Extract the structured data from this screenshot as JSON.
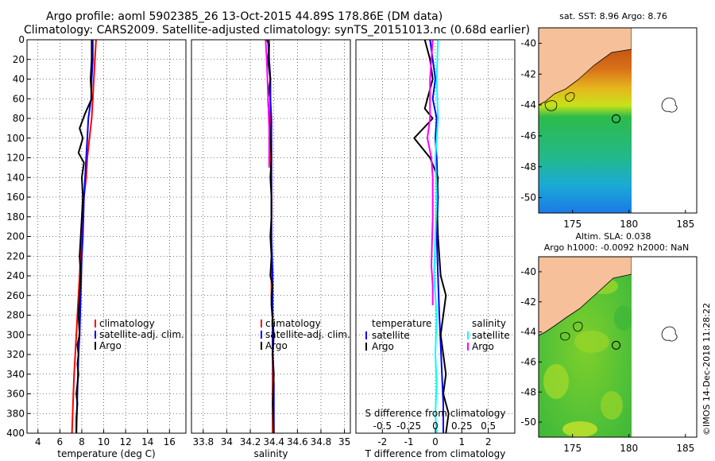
{
  "figure": {
    "title_line1": "Argo profile: aoml 5902385_26 13-Oct-2015 44.89S 178.86E (DM data)",
    "title_line2": "Climatology: CARS2009. Satellite-adjusted climatology: synTS_20151013.nc (0.68d earlier)",
    "credit": "©IMOS 14-Dec-2018 11:28:22",
    "colors": {
      "climatology": "#ff0000",
      "satellite": "#0000ff",
      "argo": "#000000",
      "salinity_argo_diff": "#ff00ff",
      "salinity_sat_diff": "#00ffff",
      "land": "#f5c09a"
    }
  },
  "chart_data": [
    {
      "type": "line",
      "id": "temperature",
      "xlabel": "temperature (deg C)",
      "ylabel": "",
      "xlim": [
        3,
        17.5
      ],
      "ylim": [
        400,
        0
      ],
      "xticks": [
        4,
        6,
        8,
        10,
        12,
        14,
        16
      ],
      "xtick_labels": [
        "4",
        "6",
        "8",
        "10",
        "12",
        "14",
        "16"
      ],
      "yticks": [
        0,
        20,
        40,
        60,
        80,
        100,
        120,
        140,
        160,
        180,
        200,
        220,
        240,
        260,
        280,
        300,
        320,
        340,
        360,
        380,
        400
      ],
      "ytick_labels": [
        "0",
        "20",
        "40",
        "60",
        "80",
        "100",
        "120",
        "140",
        "160",
        "180",
        "200",
        "220",
        "240",
        "260",
        "280",
        "300",
        "320",
        "340",
        "360",
        "380",
        "400"
      ],
      "grid": true,
      "legend": [
        "climatology",
        "satellite-adj. clim.",
        "Argo"
      ],
      "legend_position": "lower-right",
      "series": [
        {
          "name": "climatology",
          "color": "#ff0000",
          "x": [
            9.3,
            9.2,
            9.1,
            9.0,
            8.9,
            8.7,
            8.5,
            8.4,
            8.2,
            8.1,
            8.0,
            7.9,
            7.7,
            7.6,
            7.5,
            7.4,
            7.3,
            7.2,
            7.1
          ],
          "y": [
            0,
            20,
            40,
            60,
            80,
            100,
            120,
            140,
            160,
            180,
            200,
            220,
            260,
            280,
            300,
            320,
            340,
            370,
            400
          ]
        },
        {
          "name": "satellite-adj. clim.",
          "color": "#0000ff",
          "x": [
            9.0,
            9.0,
            8.9,
            8.85,
            8.6,
            8.5,
            8.4,
            8.3,
            8.2,
            8.15,
            8.1,
            8.0,
            7.95,
            7.9,
            7.85,
            7.8,
            7.7,
            7.65,
            7.6,
            7.55,
            7.5
          ],
          "y": [
            0,
            20,
            40,
            60,
            80,
            100,
            120,
            140,
            160,
            180,
            200,
            220,
            240,
            260,
            280,
            300,
            320,
            340,
            360,
            380,
            400
          ]
        },
        {
          "name": "Argo",
          "color": "#000000",
          "x": [
            8.9,
            8.9,
            8.8,
            8.9,
            8.3,
            7.8,
            8.1,
            7.7,
            8.2,
            8.0,
            8.1,
            8.0,
            7.9,
            7.8,
            7.9,
            7.8,
            7.7,
            7.8,
            7.6,
            7.7,
            7.6,
            7.7,
            7.5,
            7.6,
            7.5,
            7.5
          ],
          "y": [
            0,
            20,
            40,
            60,
            75,
            90,
            100,
            115,
            125,
            140,
            160,
            180,
            200,
            220,
            240,
            260,
            280,
            300,
            310,
            320,
            330,
            340,
            360,
            370,
            385,
            400
          ]
        }
      ]
    },
    {
      "type": "line",
      "id": "salinity",
      "xlabel": "salinity",
      "ylabel": "",
      "xlim": [
        33.7,
        35.05
      ],
      "ylim": [
        400,
        0
      ],
      "xticks": [
        33.8,
        34.0,
        34.2,
        34.4,
        34.6,
        34.8,
        35.0
      ],
      "xtick_labels": [
        "33.8",
        "34",
        "34.2",
        "34.4",
        "34.6",
        "34.8",
        "35"
      ],
      "yticks": [
        0,
        20,
        40,
        60,
        80,
        100,
        120,
        140,
        160,
        180,
        200,
        220,
        240,
        260,
        280,
        300,
        320,
        340,
        360,
        380,
        400
      ],
      "grid": true,
      "legend": [
        "climatology",
        "satellite-adj. clim.",
        "Argo"
      ],
      "legend_position": "lower-right",
      "series": [
        {
          "name": "climatology",
          "color": "#ff0000",
          "x": [
            34.36,
            34.36,
            34.37,
            34.37,
            34.37,
            34.37,
            34.37,
            34.38,
            34.38,
            34.38,
            34.38,
            34.38,
            34.38,
            34.39,
            34.39,
            34.39,
            34.39,
            34.39,
            34.39
          ],
          "y": [
            0,
            20,
            40,
            60,
            80,
            100,
            120,
            140,
            160,
            180,
            200,
            240,
            260,
            280,
            300,
            320,
            340,
            370,
            400
          ]
        },
        {
          "name": "satellite-adj. clim.",
          "color": "#0000ff",
          "x": [
            34.35,
            34.36,
            34.37,
            34.37,
            34.38,
            34.38,
            34.38,
            34.38,
            34.39,
            34.39,
            34.39,
            34.39,
            34.39,
            34.4,
            34.4,
            34.4
          ],
          "y": [
            0,
            20,
            40,
            60,
            80,
            120,
            160,
            200,
            240,
            260,
            280,
            300,
            320,
            350,
            380,
            400
          ]
        },
        {
          "name": "Argo",
          "color": "#000000",
          "x": [
            34.34,
            34.36,
            34.35,
            34.37,
            34.35,
            34.36,
            34.37,
            34.38,
            34.37,
            34.38,
            34.38,
            34.37,
            34.38,
            34.37,
            34.39,
            34.38,
            34.38,
            34.4,
            34.39,
            34.4,
            34.39,
            34.4
          ],
          "y": [
            0,
            5,
            20,
            40,
            60,
            80,
            100,
            120,
            140,
            160,
            180,
            200,
            220,
            240,
            250,
            260,
            270,
            300,
            320,
            340,
            370,
            400
          ]
        },
        {
          "name": "Argo salinity (magenta)",
          "color": "#ff00ff",
          "x": [
            34.33,
            34.34,
            34.36,
            34.36
          ],
          "y": [
            0,
            20,
            90,
            130
          ]
        }
      ]
    },
    {
      "type": "line",
      "id": "difference",
      "xlabel": "T difference from climatology",
      "secondary_xlabel": "S difference from climatology",
      "xlim": [
        -3,
        3
      ],
      "ylim": [
        400,
        0
      ],
      "xticks": [
        -2,
        -1,
        0,
        1,
        2
      ],
      "xtick_labels": [
        "-2",
        "-1",
        "0",
        "1",
        "2"
      ],
      "secondary_xticks": [
        -2,
        -1,
        0,
        1,
        2
      ],
      "secondary_xtick_labels": [
        "-0.5",
        "-0.25",
        "0",
        "0.25",
        "0.5"
      ],
      "yticks": [
        0,
        20,
        40,
        60,
        80,
        100,
        120,
        140,
        160,
        180,
        200,
        220,
        240,
        260,
        280,
        300,
        320,
        340,
        360,
        380,
        400
      ],
      "grid": true,
      "legend_temperature_header": "temperature",
      "legend_salinity_header": "salinity",
      "legend": [
        "satellite",
        "Argo",
        "satellite",
        "Argo"
      ],
      "legend_position": "lower-middle",
      "series": [
        {
          "name": "temperature satellite",
          "color": "#0000ff",
          "x": [
            -0.2,
            -0.1,
            0.0,
            -0.1,
            0.05,
            0.0,
            0.05,
            0.1,
            0.05,
            0.1,
            0.15,
            0.2,
            0.25,
            0.3,
            0.3
          ],
          "y": [
            0,
            20,
            40,
            60,
            80,
            100,
            120,
            160,
            200,
            240,
            280,
            310,
            340,
            370,
            400
          ]
        },
        {
          "name": "temperature Argo",
          "color": "#000000",
          "x": [
            -0.4,
            -0.3,
            -0.2,
            -0.1,
            -0.3,
            -0.4,
            -0.1,
            -0.8,
            -0.2,
            0.1,
            0.05,
            0.1,
            0.2,
            0.4,
            0.3,
            0.2,
            0.3,
            0.4,
            0.3,
            0.5,
            0.4
          ],
          "y": [
            0,
            10,
            20,
            40,
            60,
            70,
            80,
            100,
            120,
            140,
            160,
            200,
            240,
            260,
            280,
            300,
            320,
            340,
            360,
            380,
            400
          ]
        },
        {
          "name": "salinity satellite",
          "color": "#00ffff",
          "x": [
            0.1,
            0.05,
            0.1,
            0.0,
            0.05,
            0.0,
            -0.05,
            0.05,
            0.0,
            0.05,
            0.0,
            0.05
          ],
          "y": [
            0,
            40,
            80,
            120,
            160,
            200,
            240,
            280,
            320,
            350,
            380,
            400
          ]
        },
        {
          "name": "salinity Argo",
          "color": "#ff00ff",
          "x": [
            -0.1,
            -0.2,
            -0.2,
            -0.3,
            -0.15,
            -0.1,
            -0.1,
            -0.15,
            -0.1,
            -0.1
          ],
          "y": [
            0,
            40,
            80,
            100,
            120,
            140,
            180,
            230,
            250,
            270
          ]
        }
      ]
    },
    {
      "type": "heatmap",
      "id": "sst_map",
      "title": "sat. SST: 8.96 Argo: 8.76",
      "xlim": [
        172,
        186
      ],
      "ylim": [
        -51,
        -39
      ],
      "xticks": [
        175,
        180,
        185
      ],
      "xtick_labels": [
        "175",
        "180",
        "185"
      ],
      "yticks": [
        -40,
        -42,
        -44,
        -46,
        -48,
        -50
      ],
      "ytick_labels": [
        "-40",
        "-42",
        "-44",
        "-46",
        "-48",
        "-50"
      ],
      "argo_position": [
        178.86,
        -44.89
      ]
    },
    {
      "type": "heatmap",
      "id": "sla_map",
      "title_line1": "Altim. SLA: 0.038",
      "title_line2": "Argo h1000: -0.0092 h2000: NaN",
      "xlim": [
        172,
        186
      ],
      "ylim": [
        -51,
        -39
      ],
      "xticks": [
        175,
        180,
        185
      ],
      "xtick_labels": [
        "175",
        "180",
        "185"
      ],
      "yticks": [
        -40,
        -42,
        -44,
        -46,
        -48,
        -50
      ],
      "ytick_labels": [
        "-40",
        "-42",
        "-44",
        "-46",
        "-48",
        "-50"
      ],
      "argo_position": [
        178.86,
        -44.89
      ]
    }
  ]
}
